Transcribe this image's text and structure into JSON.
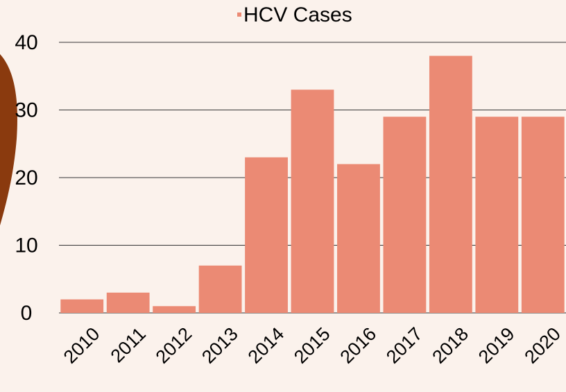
{
  "chart_data": {
    "type": "bar",
    "categories": [
      "2010",
      "2011",
      "2012",
      "2013",
      "2014",
      "2015",
      "2016",
      "2017",
      "2018",
      "2019",
      "2020"
    ],
    "series": [
      {
        "name": "HCV Cases",
        "color": "#eb8a74",
        "values": [
          2,
          3,
          1,
          7,
          23,
          33,
          22,
          29,
          38,
          29,
          29
        ]
      }
    ],
    "ylim": [
      0,
      40
    ],
    "yticks": [
      0,
      10,
      20,
      30,
      40
    ],
    "grid": true,
    "legend": "top"
  }
}
